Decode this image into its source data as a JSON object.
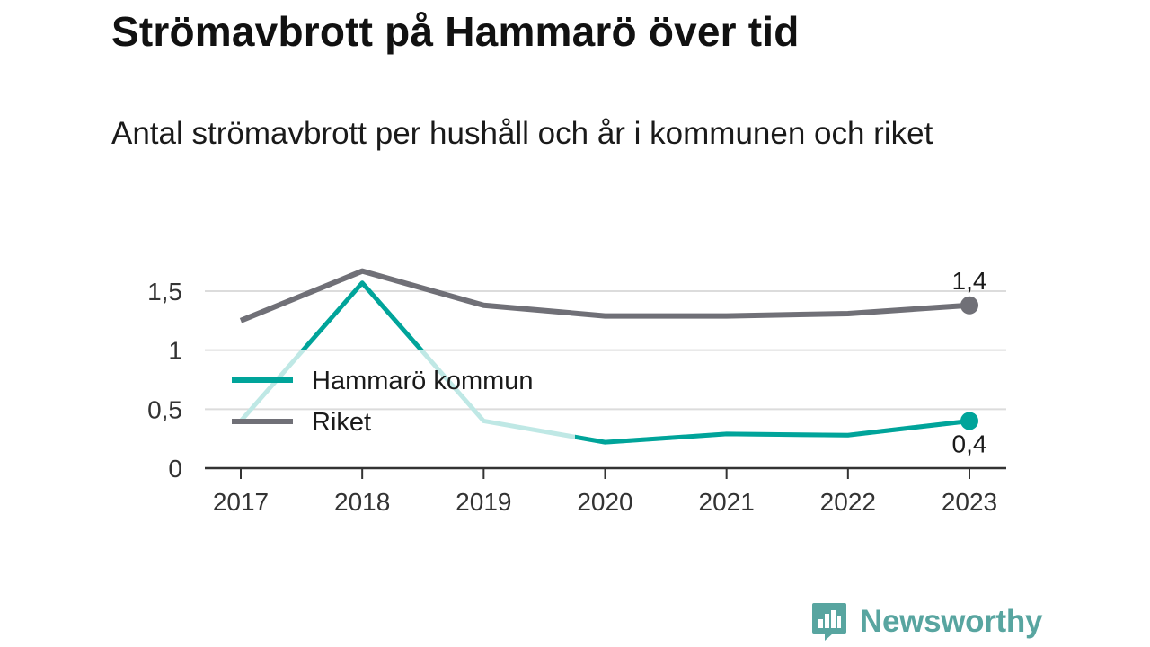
{
  "title": "Strömavbrott på Hammarö över tid",
  "subtitle": "Antal strömavbrott per hushåll och år i kommunen och riket",
  "brand": "Newsworthy",
  "colors": {
    "hammaro": "#00a49a",
    "hammaro_faded": "#bfe8e5",
    "riket": "#707077",
    "grid": "#dcdcdc",
    "axis": "#333333"
  },
  "chart_data": {
    "type": "line",
    "x": [
      "2017",
      "2018",
      "2019",
      "2020",
      "2021",
      "2022",
      "2023"
    ],
    "ylim": [
      0,
      1.5
    ],
    "y_ticks": [
      "0",
      "0,5",
      "1",
      "1,5"
    ],
    "y_tick_values": [
      0,
      0.5,
      1,
      1.5
    ],
    "grid": true,
    "legend_placement": "center-left",
    "series": [
      {
        "name": "Hammarö kommun",
        "values": [
          0.4,
          1.57,
          0.4,
          0.22,
          0.29,
          0.28,
          0.4
        ],
        "end_label": "0,4",
        "color_key": "hammaro"
      },
      {
        "name": "Riket",
        "values": [
          1.25,
          1.67,
          1.38,
          1.29,
          1.29,
          1.31,
          1.38
        ],
        "end_label": "1,4",
        "color_key": "riket"
      }
    ]
  }
}
